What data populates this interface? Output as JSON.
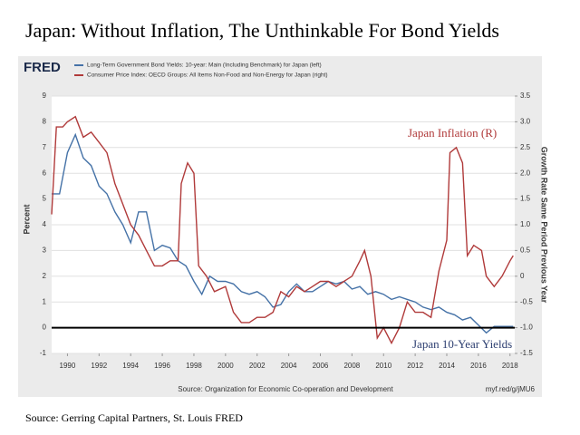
{
  "chart_data": {
    "type": "line",
    "title": "Japan:  Without Inflation, The Unthinkable For Bond Yields",
    "logo": "FRED",
    "y_label": "Percent",
    "y2_label": "Growth Rate Same Period Previous Year",
    "source": "Source: Organization for Economic Co-operation and Development",
    "link": "myf.red/g/jMU6",
    "footer": "Source: Gerring Capital Partners, St. Louis FRED",
    "annotations": [
      {
        "text": "Japan Inflation (R)",
        "color": "#b03a3a"
      },
      {
        "text": "Japan 10-Year Yields",
        "color": "#2c3e70"
      }
    ],
    "hline": 0,
    "grid": true,
    "xlim": [
      1989,
      2018.3
    ],
    "xticks": [
      1990,
      1992,
      1994,
      1996,
      1998,
      2000,
      2002,
      2004,
      2006,
      2008,
      2010,
      2012,
      2014,
      2016,
      2018
    ],
    "ylim": [
      -1,
      9
    ],
    "yticks": [
      -1,
      0,
      1,
      2,
      3,
      4,
      5,
      6,
      7,
      8,
      9
    ],
    "y2lim": [
      -1.5,
      3.5
    ],
    "y2ticks": [
      -1.5,
      {
        "value": -1,
        "label": "-1.0"
      },
      -0.5,
      0,
      0.5,
      {
        "value": 1,
        "label": "1.0"
      },
      1.5,
      {
        "value": 2,
        "label": "2.0"
      },
      2.5,
      {
        "value": 3,
        "label": "3.0"
      },
      3.5
    ],
    "series": [
      {
        "name": "Long-Term Government Bond Yields: 10-year: Main (Including Benchmark) for Japan (left)",
        "color": "#4572a7",
        "axis": "y",
        "x": [
          1989.0,
          1989.5,
          1990.0,
          1990.5,
          1991.0,
          1991.5,
          1992.0,
          1992.5,
          1993.0,
          1993.5,
          1994.0,
          1994.5,
          1995.0,
          1995.5,
          1996.0,
          1996.5,
          1997.0,
          1997.5,
          1998.0,
          1998.5,
          1999.0,
          1999.5,
          2000.0,
          2000.5,
          2001.0,
          2001.5,
          2002.0,
          2002.5,
          2003.0,
          2003.5,
          2004.0,
          2004.5,
          2005.0,
          2005.5,
          2006.0,
          2006.5,
          2007.0,
          2007.5,
          2008.0,
          2008.5,
          2009.0,
          2009.5,
          2010.0,
          2010.5,
          2011.0,
          2011.5,
          2012.0,
          2012.5,
          2013.0,
          2013.5,
          2014.0,
          2014.5,
          2015.0,
          2015.5,
          2016.0,
          2016.5,
          2017.0,
          2017.5,
          2018.0,
          2018.2
        ],
        "values": [
          5.2,
          5.2,
          6.8,
          7.5,
          6.6,
          6.3,
          5.5,
          5.2,
          4.5,
          4.0,
          3.3,
          4.5,
          4.5,
          3.0,
          3.2,
          3.1,
          2.6,
          2.4,
          1.8,
          1.3,
          2.0,
          1.8,
          1.8,
          1.7,
          1.4,
          1.3,
          1.4,
          1.2,
          0.8,
          0.9,
          1.4,
          1.7,
          1.4,
          1.4,
          1.6,
          1.8,
          1.7,
          1.8,
          1.5,
          1.6,
          1.3,
          1.4,
          1.3,
          1.1,
          1.2,
          1.1,
          1.0,
          0.8,
          0.7,
          0.8,
          0.6,
          0.5,
          0.3,
          0.4,
          0.1,
          -0.2,
          0.05,
          0.05,
          0.05,
          0.05
        ]
      },
      {
        "name": "Consumer Price Index: OECD Groups: All Items Non-Food and Non-Energy for Japan (right)",
        "color": "#b03a3a",
        "axis": "y2",
        "x": [
          1989.0,
          1989.3,
          1989.7,
          1990.0,
          1990.5,
          1991.0,
          1991.5,
          1992.0,
          1992.5,
          1993.0,
          1993.5,
          1994.0,
          1994.5,
          1995.0,
          1995.5,
          1996.0,
          1996.5,
          1997.0,
          1997.2,
          1997.6,
          1998.0,
          1998.3,
          1998.8,
          1999.3,
          2000.0,
          2000.5,
          2001.0,
          2001.5,
          2002.0,
          2002.5,
          2003.0,
          2003.5,
          2004.0,
          2004.5,
          2005.0,
          2005.5,
          2006.0,
          2006.5,
          2007.0,
          2007.5,
          2008.0,
          2008.5,
          2008.8,
          2009.2,
          2009.6,
          2010.0,
          2010.5,
          2011.0,
          2011.5,
          2012.0,
          2012.5,
          2013.0,
          2013.5,
          2014.0,
          2014.2,
          2014.6,
          2015.0,
          2015.3,
          2015.7,
          2016.2,
          2016.5,
          2017.0,
          2017.5,
          2018.0,
          2018.2
        ],
        "values": [
          1.2,
          2.9,
          2.9,
          3.0,
          3.1,
          2.7,
          2.8,
          2.6,
          2.4,
          1.8,
          1.4,
          1.0,
          0.8,
          0.5,
          0.2,
          0.2,
          0.3,
          0.3,
          1.8,
          2.2,
          2.0,
          0.2,
          0.0,
          -0.3,
          -0.2,
          -0.7,
          -0.9,
          -0.9,
          -0.8,
          -0.8,
          -0.7,
          -0.3,
          -0.4,
          -0.2,
          -0.3,
          -0.2,
          -0.1,
          -0.1,
          -0.2,
          -0.1,
          0.0,
          0.3,
          0.5,
          0.0,
          -1.2,
          -1.0,
          -1.3,
          -1.0,
          -0.5,
          -0.7,
          -0.7,
          -0.8,
          0.1,
          0.7,
          2.4,
          2.5,
          2.2,
          0.4,
          0.6,
          0.5,
          0.0,
          -0.2,
          0.0,
          0.3,
          0.4
        ]
      }
    ]
  }
}
